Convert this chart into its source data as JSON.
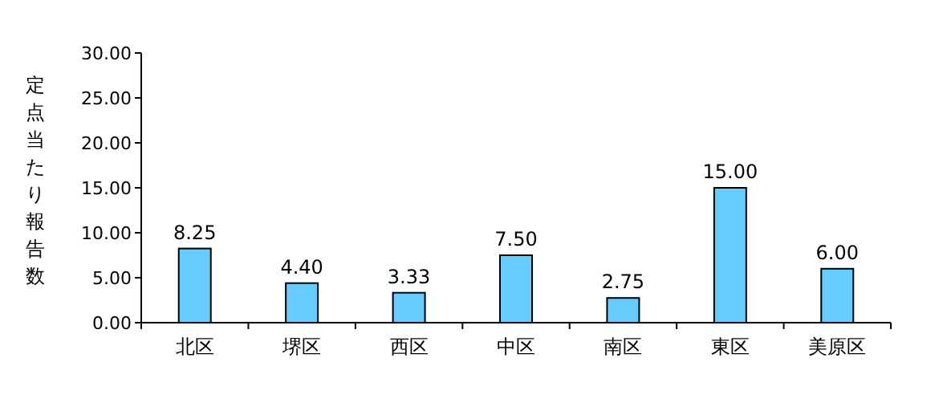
{
  "chart_data": {
    "type": "bar",
    "ylabel": "定点当たり報告数",
    "categories": [
      "北区",
      "堺区",
      "西区",
      "中区",
      "南区",
      "東区",
      "美原区"
    ],
    "values": [
      8.25,
      4.4,
      3.33,
      7.5,
      2.75,
      15.0,
      6.0
    ],
    "value_labels": [
      "8.25",
      "4.40",
      "3.33",
      "7.50",
      "2.75",
      "15.00",
      "6.00"
    ],
    "color": "#66ccff",
    "ylim": [
      0,
      30
    ],
    "yticks": [
      {
        "value": 0,
        "label": "0.00"
      },
      {
        "value": 5,
        "label": "5.00"
      },
      {
        "value": 10,
        "label": "10.00"
      },
      {
        "value": 15,
        "label": "15.00"
      },
      {
        "value": 20,
        "label": "20.00"
      },
      {
        "value": 25,
        "label": "25.00"
      },
      {
        "value": 30,
        "label": "30.00"
      }
    ]
  }
}
